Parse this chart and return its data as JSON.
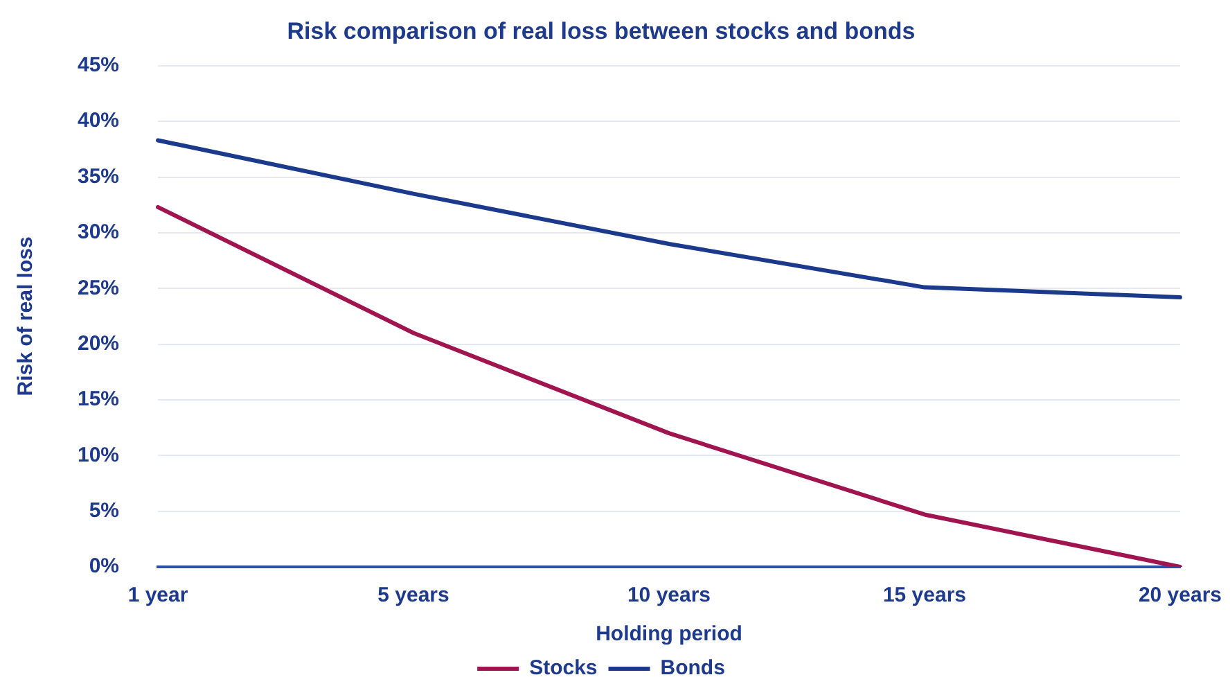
{
  "chart_data": {
    "type": "line",
    "title": "Risk comparison of real loss between stocks and bonds",
    "xlabel": "Holding period",
    "ylabel": "Risk of real loss",
    "categories": [
      "1 year",
      "5 years",
      "10 years",
      "15 years",
      "20 years"
    ],
    "series": [
      {
        "name": "Stocks",
        "color": "#a01550",
        "values": [
          32.3,
          21.0,
          12.0,
          4.7,
          0
        ]
      },
      {
        "name": "Bonds",
        "color": "#1b3a8c",
        "values": [
          38.3,
          33.5,
          29.0,
          25.1,
          24.2
        ]
      }
    ],
    "ylim": [
      0,
      45
    ],
    "yticks": [
      {
        "value": 0,
        "label": "0%"
      },
      {
        "value": 5,
        "label": "5%"
      },
      {
        "value": 10,
        "label": "10%"
      },
      {
        "value": 15,
        "label": "15%"
      },
      {
        "value": 20,
        "label": "20%"
      },
      {
        "value": 25,
        "label": "25%"
      },
      {
        "value": 30,
        "label": "30%"
      },
      {
        "value": 35,
        "label": "35%"
      },
      {
        "value": 40,
        "label": "40%"
      },
      {
        "value": 45,
        "label": "45%"
      }
    ],
    "grid": "y",
    "legend": "bottom",
    "marker": "none",
    "line_style": "solid"
  }
}
